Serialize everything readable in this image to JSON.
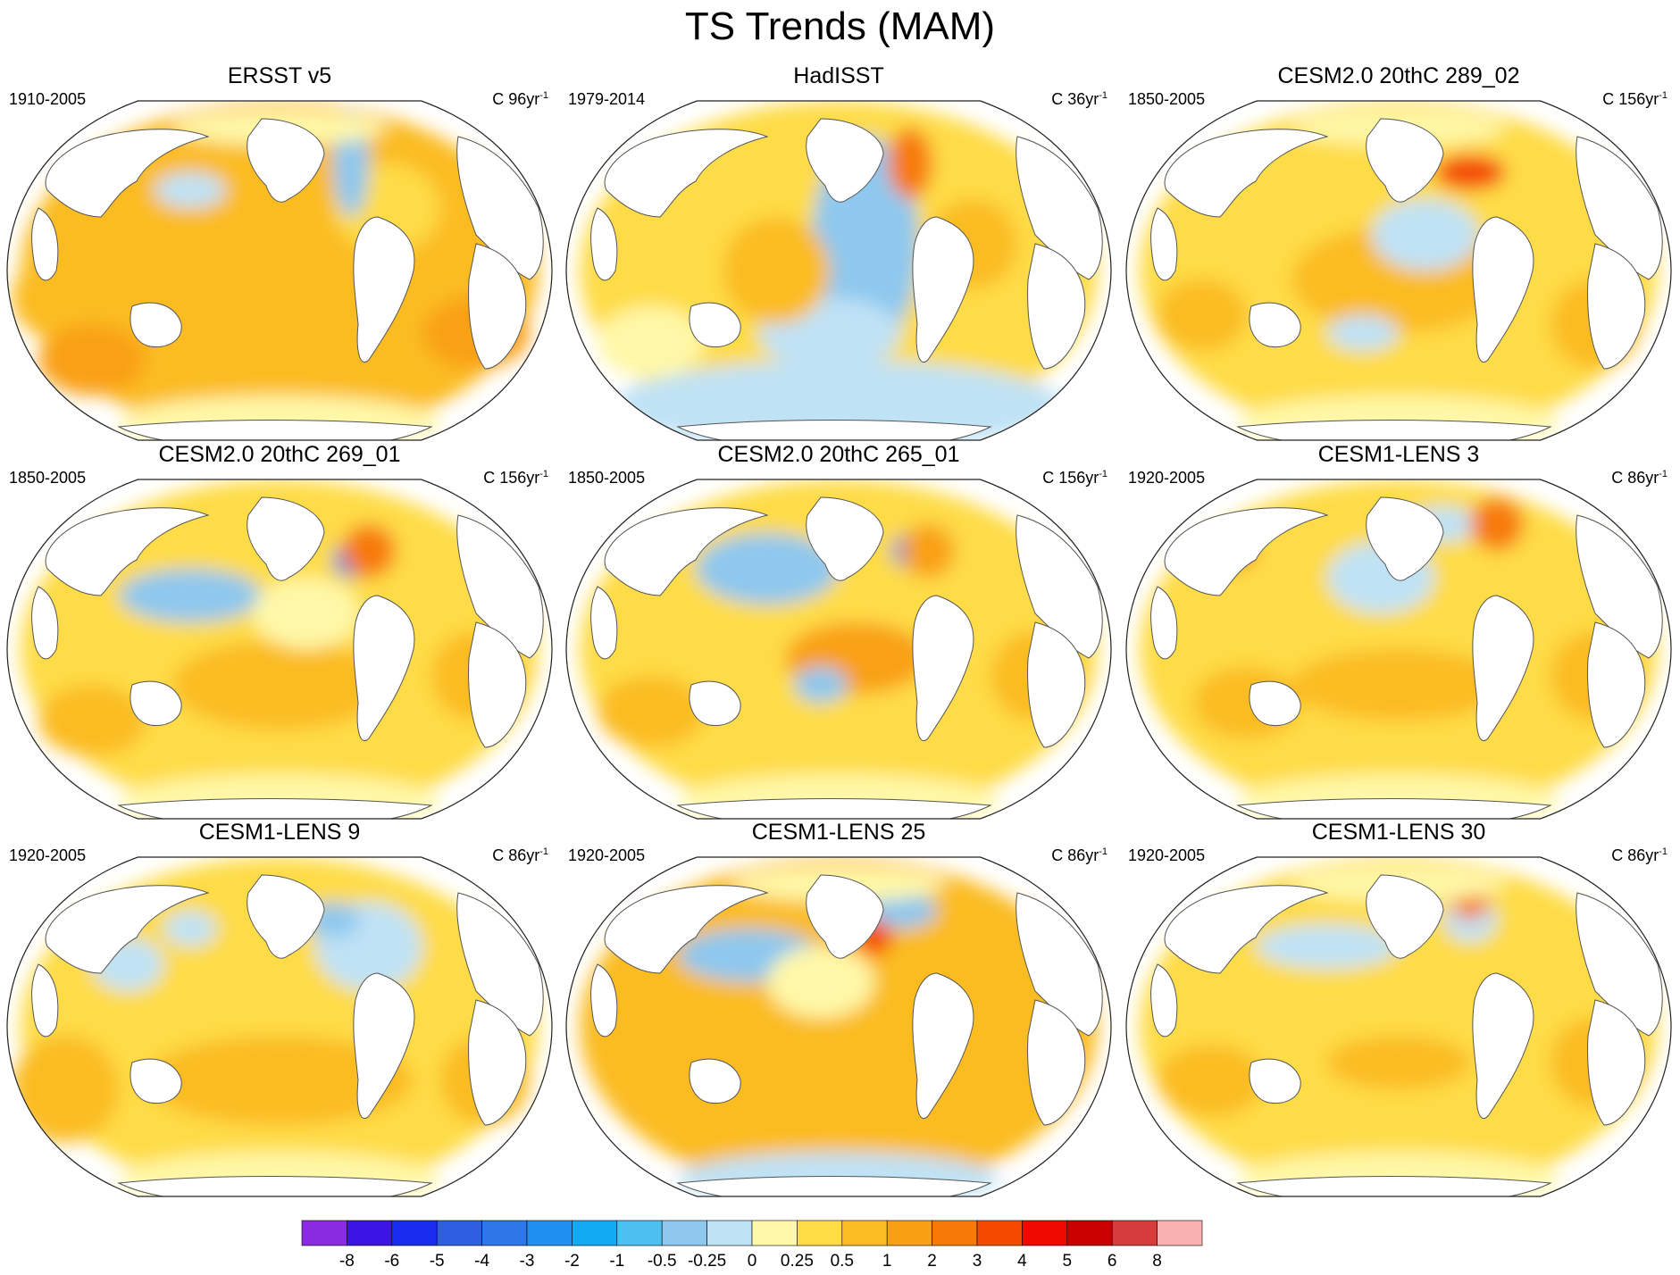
{
  "title": "TS Trends (MAM)",
  "chart_data": {
    "type": "contour-map-panels",
    "projection": "Robinson, Pacific-centred",
    "variable": "TS",
    "season": "MAM",
    "panels": [
      {
        "title": "ERSST v5",
        "period": "1910-2005",
        "units_base": "C 96yr",
        "units_exp": "-1",
        "pattern": "broad warming 0.5–1 everywhere, small cooling in NW Atlantic and N Pacific"
      },
      {
        "title": "HadISST",
        "period": "1979-2014",
        "units_base": "C 36yr",
        "units_exp": "-1",
        "pattern": "cooling in eastern Pacific and Southern Ocean, warming western Pacific and Atlantic"
      },
      {
        "title": "CESM2.0 20thC 289_02",
        "period": "1850-2005",
        "units_base": "C 156yr",
        "units_exp": "-1",
        "pattern": "warming 0.25–1, strong warming and cooling dipole in N Atlantic"
      },
      {
        "title": "CESM2.0 20thC 269_01",
        "period": "1850-2005",
        "units_base": "C 156yr",
        "units_exp": "-1",
        "pattern": "cooling in North Pacific and NW Atlantic, warming elsewhere"
      },
      {
        "title": "CESM2.0 20thC 265_01",
        "period": "1850-2005",
        "units_base": "C 156yr",
        "units_exp": "-1",
        "pattern": "strong cooling North Pacific, warming eastern tropical Pacific"
      },
      {
        "title": "CESM1-LENS 3",
        "period": "1920-2005",
        "units_base": "C 86yr",
        "units_exp": "-1",
        "pattern": "mixed, mild cooling north Pacific and tropics"
      },
      {
        "title": "CESM1-LENS 9",
        "period": "1920-2005",
        "units_base": "C 86yr",
        "units_exp": "-1",
        "pattern": "warming with cooling in NE Pacific and N Atlantic"
      },
      {
        "title": "CESM1-LENS 25",
        "period": "1920-2005",
        "units_base": "C 86yr",
        "units_exp": "-1",
        "pattern": "warming with cooling band across North Pacific"
      },
      {
        "title": "CESM1-LENS 30",
        "period": "1920-2005",
        "units_base": "C 86yr",
        "units_exp": "-1",
        "pattern": "warming with mild cooling North Pacific"
      }
    ],
    "colorbar": {
      "labels": [
        "-8",
        "-6",
        "-5",
        "-4",
        "-3",
        "-2",
        "-1",
        "-0.5",
        "-0.25",
        "0",
        "0.25",
        "0.5",
        "1",
        "2",
        "3",
        "4",
        "5",
        "6",
        "8"
      ],
      "colors": [
        "#8a2be2",
        "#3c14e6",
        "#1a2cf0",
        "#2f5fe0",
        "#2f76e8",
        "#2090f0",
        "#12aaf0",
        "#4ec0f0",
        "#8ec8ee",
        "#bfe2f5",
        "#fff8a8",
        "#fedc46",
        "#fbbc24",
        "#f9a012",
        "#f77a08",
        "#f44a00",
        "#ee0a00",
        "#c80000",
        "#d63c3c",
        "#f9b0b0"
      ]
    }
  }
}
